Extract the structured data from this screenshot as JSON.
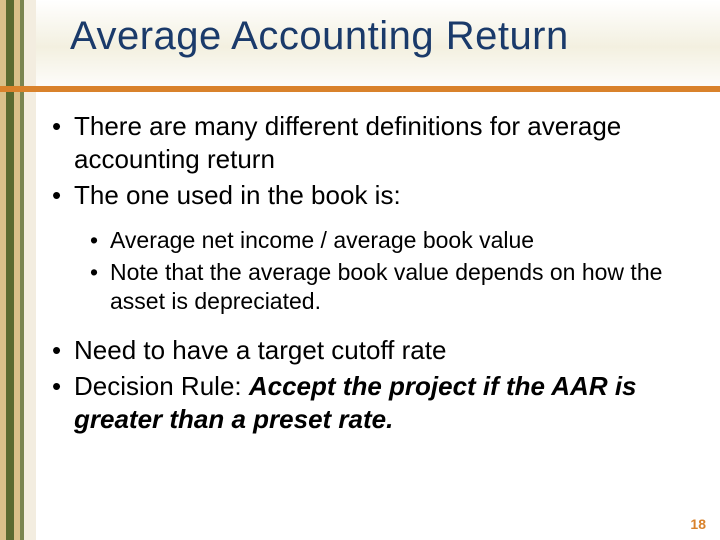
{
  "title": "Average Accounting Return",
  "bullets": {
    "b1": "There are many different definitions for average accounting return",
    "b2": "The one used in the book is:",
    "b2a": "Average net income / average book value",
    "b2b": "Note that the average book value depends on how the asset is depreciated.",
    "b3": "Need to have a target cutoff rate",
    "b4a": "Decision Rule: ",
    "b4b": "Accept the project if the AAR is greater than a preset rate."
  },
  "page_number": "18",
  "colors": {
    "title_color": "#1a3a6a",
    "accent_orange": "#d9822b",
    "band_olive": "#5a6a2f",
    "band_tan": "#d9c089"
  }
}
